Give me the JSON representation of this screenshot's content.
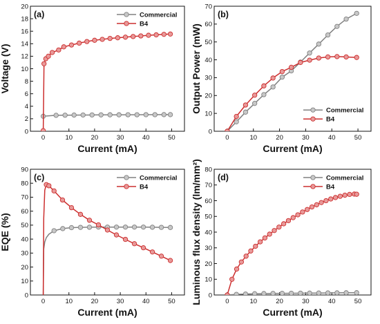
{
  "chart_data": [
    {
      "type": "line",
      "panel_label": "(a)",
      "xlabel": "Current (mA)",
      "ylabel": "Voltage (V)",
      "xlim": [
        -5,
        55
      ],
      "ylim": [
        0,
        20
      ],
      "xticks": [
        0,
        10,
        20,
        30,
        40,
        50
      ],
      "yticks": [
        0,
        2,
        4,
        6,
        8,
        10,
        12,
        14,
        16,
        18,
        20
      ],
      "legend_position": "top-right",
      "series": [
        {
          "name": "Commercial",
          "color": "#808080",
          "marker_color": "#c8c8c8",
          "x": [
            0,
            5,
            8.5,
            12,
            15.5,
            19,
            22.5,
            26,
            29.5,
            33,
            36.5,
            40,
            43.5,
            47,
            49.5
          ],
          "y": [
            2.4,
            2.55,
            2.57,
            2.59,
            2.6,
            2.61,
            2.62,
            2.63,
            2.63,
            2.64,
            2.64,
            2.65,
            2.65,
            2.66,
            2.66
          ]
        },
        {
          "name": "B4",
          "color": "#cc2e2e",
          "marker_color": "#e89999",
          "x": [
            0,
            0.3,
            1,
            2,
            3.5,
            6,
            8,
            11,
            14,
            17,
            20,
            23,
            26,
            29,
            32,
            35,
            38,
            41,
            44,
            47,
            49.5
          ],
          "y": [
            0.1,
            10.8,
            11.6,
            12.0,
            12.6,
            13.0,
            13.5,
            13.8,
            14.1,
            14.35,
            14.55,
            14.7,
            14.85,
            14.95,
            15.05,
            15.15,
            15.25,
            15.35,
            15.42,
            15.5,
            15.55
          ]
        }
      ]
    },
    {
      "type": "line",
      "panel_label": "(b)",
      "xlabel": "Current (mA)",
      "ylabel": "Output Power (mW)",
      "xlim": [
        -5,
        55
      ],
      "ylim": [
        0,
        70
      ],
      "xticks": [
        0,
        10,
        20,
        30,
        40,
        50
      ],
      "yticks": [
        0,
        10,
        20,
        30,
        40,
        50,
        60,
        70
      ],
      "legend_position": "right",
      "series": [
        {
          "name": "Commercial",
          "color": "#808080",
          "marker_color": "#c8c8c8",
          "x": [
            0,
            3.5,
            7,
            10.5,
            14,
            17.5,
            21,
            24.5,
            28,
            31.5,
            35,
            38.5,
            42,
            45.5,
            49.5
          ],
          "y": [
            0,
            5.3,
            10.7,
            15.6,
            20.5,
            24.8,
            30.3,
            33.8,
            38.7,
            43.8,
            48.8,
            53.9,
            58.7,
            62.8,
            66.0
          ]
        },
        {
          "name": "B4",
          "color": "#cc2e2e",
          "marker_color": "#e89999",
          "x": [
            0,
            3.5,
            7,
            10.5,
            14,
            17.5,
            21,
            24.5,
            28,
            31.5,
            35,
            38.5,
            42,
            45.5,
            49.5
          ],
          "y": [
            0,
            8.3,
            14.7,
            20.2,
            25.4,
            29.8,
            33.4,
            35.8,
            38.5,
            39.8,
            41.0,
            41.6,
            41.8,
            41.6,
            41.3
          ]
        }
      ]
    },
    {
      "type": "line",
      "panel_label": "(c)",
      "xlabel": "Current (mA)",
      "ylabel": "EQE (%)",
      "xlim": [
        -5,
        55
      ],
      "ylim": [
        0,
        90
      ],
      "xticks": [
        0,
        10,
        20,
        30,
        40,
        50
      ],
      "yticks": [
        0,
        10,
        20,
        30,
        40,
        50,
        60,
        70,
        80,
        90
      ],
      "legend_position": "top-right",
      "series": [
        {
          "name": "Commercial",
          "color": "#808080",
          "marker_color": "#c8c8c8",
          "x": [
            0,
            0.2,
            0.6,
            1.2,
            2.2,
            4.2,
            7.6,
            11,
            14.5,
            18,
            21.5,
            25,
            28.5,
            32,
            35.5,
            39,
            42.5,
            46,
            49.5
          ],
          "y": [
            0,
            33,
            38,
            41,
            43.5,
            46,
            47.5,
            48.2,
            48.4,
            48.5,
            48.6,
            48.6,
            48.6,
            48.6,
            48.6,
            48.6,
            48.5,
            48.4,
            48.3
          ],
          "markers_from_index": 5
        },
        {
          "name": "B4",
          "color": "#cc2e2e",
          "marker_color": "#e89999",
          "x": [
            0,
            0.2,
            0.6,
            1.2,
            2.2,
            4.2,
            7.5,
            11,
            14.5,
            18,
            21.5,
            25,
            28.5,
            32,
            35.5,
            39,
            42.5,
            46,
            49.5
          ],
          "y": [
            0,
            55,
            75,
            79,
            78.2,
            74.5,
            68,
            62.5,
            57.7,
            53.5,
            50.2,
            46.5,
            43,
            39.8,
            36.7,
            33.8,
            30.8,
            27.8,
            24.7
          ],
          "markers_from_index": 3
        }
      ]
    },
    {
      "type": "line",
      "panel_label": "(d)",
      "xlabel": "Current (mA)",
      "ylabel": "Luminous flux density (lm/mm²)",
      "xlim": [
        -5,
        55
      ],
      "ylim": [
        0,
        80
      ],
      "xticks": [
        0,
        10,
        20,
        30,
        40,
        50
      ],
      "yticks": [
        0,
        10,
        20,
        30,
        40,
        50,
        60,
        70,
        80
      ],
      "legend_position": "top-right",
      "series": [
        {
          "name": "Commercial",
          "color": "#808080",
          "marker_color": "#c8c8c8",
          "x": [
            0,
            3.5,
            7,
            10.5,
            14,
            17.5,
            21,
            24.5,
            28,
            31.5,
            35,
            38.5,
            42,
            45.5,
            49.5
          ],
          "y": [
            0,
            0.4,
            0.6,
            0.8,
            0.9,
            1.0,
            1.05,
            1.1,
            1.15,
            1.2,
            1.25,
            1.3,
            1.35,
            1.4,
            1.45
          ]
        },
        {
          "name": "B4",
          "color": "#cc2e2e",
          "marker_color": "#e89999",
          "x": [
            0,
            1.8,
            3.6,
            5.4,
            7.2,
            9,
            10.8,
            12.6,
            14.4,
            16.2,
            18,
            19.8,
            21.6,
            23.4,
            25.2,
            27,
            28.8,
            30.6,
            32.4,
            34.2,
            36,
            37.8,
            39.6,
            41.4,
            43.2,
            45,
            46.8,
            48.6,
            49.5
          ],
          "y": [
            0,
            10,
            16.5,
            21,
            24.7,
            28,
            31,
            33.8,
            36.3,
            38.7,
            41,
            43.2,
            45.3,
            47.3,
            49.2,
            51,
            52.8,
            54.4,
            56,
            57.4,
            58.8,
            60,
            61.1,
            62,
            62.8,
            63.5,
            64,
            64.2,
            64.1
          ]
        }
      ]
    }
  ]
}
